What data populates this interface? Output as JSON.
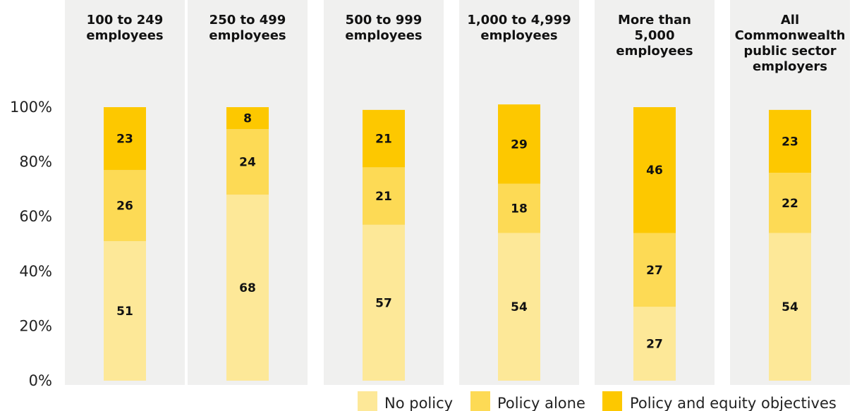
{
  "chart_data": {
    "type": "bar",
    "stacked": true,
    "title": "",
    "xlabel": "",
    "ylabel": "",
    "ylim": [
      0,
      100
    ],
    "y_ticks": [
      "0%",
      "20%",
      "40%",
      "60%",
      "80%",
      "100%"
    ],
    "categories": [
      [
        "100 to 249",
        "employees"
      ],
      [
        "250 to 499",
        "employees"
      ],
      [
        "500 to 999",
        "employees"
      ],
      [
        "1,000 to 4,999",
        "employees"
      ],
      [
        "More than",
        "5,000",
        "employees"
      ],
      [
        "All",
        "Commonwealth",
        "public sector",
        "employers"
      ]
    ],
    "series": [
      {
        "name": "No policy",
        "color": "#fde898",
        "values": [
          51,
          68,
          57,
          54,
          27,
          54
        ]
      },
      {
        "name": "Policy alone",
        "color": "#fdda55",
        "values": [
          26,
          24,
          21,
          18,
          27,
          22
        ]
      },
      {
        "name": "Policy and equity objectives",
        "color": "#fdc800",
        "values": [
          23,
          8,
          21,
          29,
          46,
          23
        ]
      }
    ],
    "legend_position": "bottom-right",
    "grid": false
  }
}
